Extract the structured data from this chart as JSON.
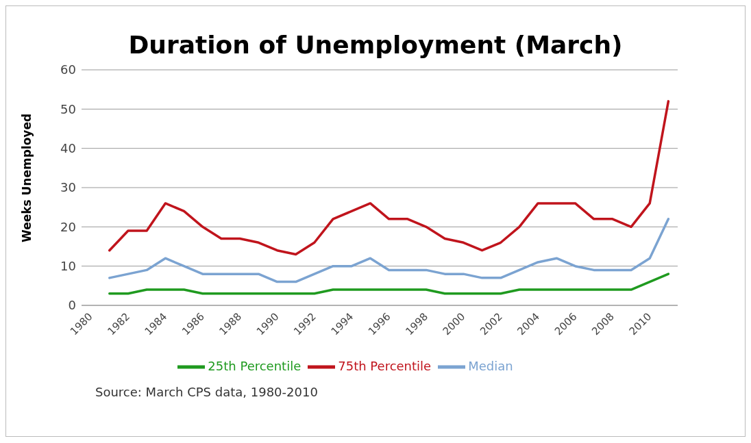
{
  "chart_data": {
    "type": "line",
    "title": "Duration of Unemployment  (March)",
    "ylabel": "Weeks Unemployed",
    "x": [
      1981,
      1982,
      1983,
      1984,
      1985,
      1986,
      1987,
      1988,
      1989,
      1990,
      1991,
      1992,
      1993,
      1994,
      1995,
      1996,
      1997,
      1998,
      1999,
      2000,
      2001,
      2002,
      2003,
      2004,
      2005,
      2006,
      2007,
      2008,
      2009,
      2010,
      2011
    ],
    "series": [
      {
        "name": "25th Percentile",
        "color": "#1f9a1f",
        "values": [
          3,
          3,
          4,
          4,
          4,
          3,
          3,
          3,
          3,
          3,
          3,
          3,
          4,
          4,
          4,
          4,
          4,
          4,
          3,
          3,
          3,
          3,
          4,
          4,
          4,
          4,
          4,
          4,
          4,
          6,
          8
        ]
      },
      {
        "name": "Median",
        "color": "#7ba3d1",
        "values": [
          7,
          8,
          9,
          12,
          10,
          8,
          8,
          8,
          8,
          6,
          6,
          8,
          10,
          10,
          12,
          9,
          9,
          9,
          8,
          8,
          7,
          7,
          9,
          11,
          12,
          10,
          9,
          9,
          9,
          12,
          22
        ]
      },
      {
        "name": "75th Percentile",
        "color": "#c0141c",
        "values": [
          14,
          19,
          19,
          26,
          24,
          20,
          17,
          17,
          16,
          14,
          13,
          16,
          22,
          24,
          26,
          22,
          22,
          20,
          17,
          16,
          14,
          16,
          20,
          26,
          26,
          26,
          22,
          22,
          20,
          26,
          52
        ]
      }
    ],
    "xlim": [
      1979.5,
      2011.5
    ],
    "xticks": [
      1980,
      1982,
      1984,
      1986,
      1988,
      1990,
      1992,
      1994,
      1996,
      1998,
      2000,
      2002,
      2004,
      2006,
      2008,
      2010
    ],
    "ylim": [
      0,
      60
    ],
    "yticks": [
      0,
      10,
      20,
      30,
      40,
      50,
      60
    ],
    "grid": "y",
    "legend": "bottom",
    "marker": "none",
    "line_style": "solid",
    "annotations": [
      "Source: March CPS data, 1980-2010"
    ]
  }
}
